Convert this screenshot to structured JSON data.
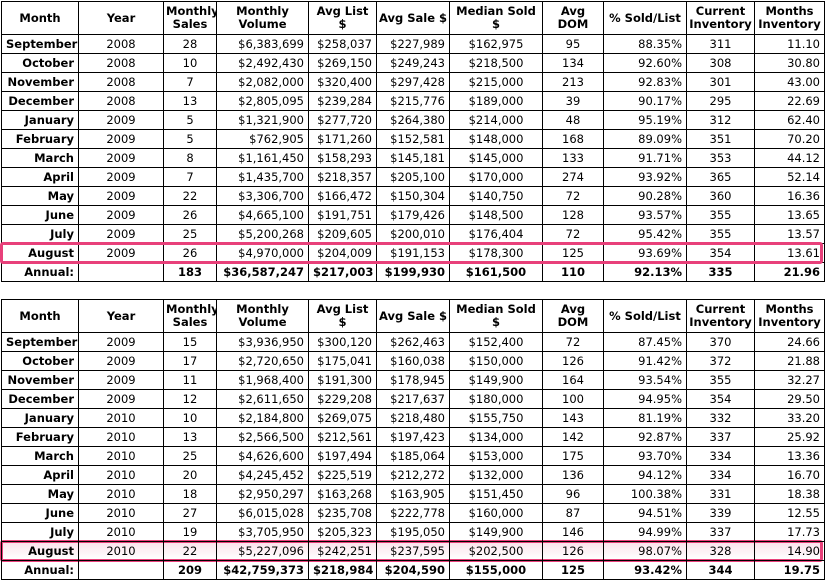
{
  "tables": [
    {
      "header": [
        "Month",
        "Year",
        "Monthly Sales",
        "Monthly Volume",
        "Avg List $",
        "Avg Sale $",
        "Median Sold $",
        "Avg DOM",
        "% Sold/List",
        "Current Inventory",
        "Months Inventory"
      ],
      "rows": [
        [
          "September",
          "2008",
          "28",
          "$6,383,699",
          "$258,037",
          "$227,989",
          "$162,975",
          "95",
          "88.35%",
          "311",
          "11.10"
        ],
        [
          "October",
          "2008",
          "10",
          "$2,492,430",
          "$269,150",
          "$249,243",
          "$218,500",
          "134",
          "92.60%",
          "308",
          "30.80"
        ],
        [
          "November",
          "2008",
          "7",
          "$2,082,000",
          "$320,400",
          "$297,428",
          "$215,000",
          "213",
          "92.83%",
          "301",
          "43.00"
        ],
        [
          "December",
          "2008",
          "13",
          "$2,805,095",
          "$239,284",
          "$215,776",
          "$189,000",
          "39",
          "90.17%",
          "295",
          "22.69"
        ],
        [
          "January",
          "2009",
          "5",
          "$1,321,900",
          "$277,720",
          "$264,380",
          "$214,000",
          "48",
          "95.19%",
          "312",
          "62.40"
        ],
        [
          "February",
          "2009",
          "5",
          "$762,905",
          "$171,260",
          "$152,581",
          "$148,000",
          "168",
          "89.09%",
          "351",
          "70.20"
        ],
        [
          "March",
          "2009",
          "8",
          "$1,161,450",
          "$158,293",
          "$145,181",
          "$145,000",
          "133",
          "91.71%",
          "353",
          "44.12"
        ],
        [
          "April",
          "2009",
          "7",
          "$1,435,700",
          "$218,357",
          "$205,100",
          "$170,000",
          "274",
          "93.92%",
          "365",
          "52.14"
        ],
        [
          "May",
          "2009",
          "22",
          "$3,306,700",
          "$166,472",
          "$150,304",
          "$140,750",
          "72",
          "90.28%",
          "360",
          "16.36"
        ],
        [
          "June",
          "2009",
          "26",
          "$4,665,100",
          "$191,751",
          "$179,426",
          "$148,500",
          "128",
          "93.57%",
          "355",
          "13.65"
        ],
        [
          "July",
          "2009",
          "25",
          "$5,200,268",
          "$209,605",
          "$200,010",
          "$176,404",
          "72",
          "95.42%",
          "355",
          "13.57"
        ],
        [
          "August",
          "2009",
          "26",
          "$4,970,000",
          "$204,009",
          "$191,153",
          "$178,300",
          "125",
          "93.69%",
          "354",
          "13.61"
        ]
      ],
      "annual": {
        "label": "Annual:",
        "values": [
          "183",
          "$36,587,247",
          "$217,003",
          "$199,930",
          "$161,500",
          "110",
          "92.13%",
          "335",
          "21.96"
        ]
      }
    },
    {
      "header": [
        "Month",
        "Year",
        "Monthly Sales",
        "Monthly Volume",
        "Avg List $",
        "Avg Sale $",
        "Median Sold $",
        "Avg DOM",
        "% Sold/List",
        "Current Inventory",
        "Months Inventory"
      ],
      "rows": [
        [
          "September",
          "2009",
          "15",
          "$3,936,950",
          "$300,120",
          "$262,463",
          "$152,400",
          "72",
          "87.45%",
          "370",
          "24.66"
        ],
        [
          "October",
          "2009",
          "17",
          "$2,720,650",
          "$175,041",
          "$160,038",
          "$150,000",
          "126",
          "91.42%",
          "372",
          "21.88"
        ],
        [
          "November",
          "2009",
          "11",
          "$1,968,400",
          "$191,300",
          "$178,945",
          "$149,900",
          "164",
          "93.54%",
          "355",
          "32.27"
        ],
        [
          "December",
          "2009",
          "12",
          "$2,611,650",
          "$229,208",
          "$217,637",
          "$180,000",
          "100",
          "94.95%",
          "354",
          "29.50"
        ],
        [
          "January",
          "2010",
          "10",
          "$2,184,800",
          "$269,075",
          "$218,480",
          "$155,750",
          "143",
          "81.19%",
          "332",
          "33.20"
        ],
        [
          "February",
          "2010",
          "13",
          "$2,566,500",
          "$212,561",
          "$197,423",
          "$134,000",
          "142",
          "92.87%",
          "337",
          "25.92"
        ],
        [
          "March",
          "2010",
          "25",
          "$4,626,600",
          "$197,494",
          "$185,064",
          "$153,000",
          "175",
          "93.70%",
          "334",
          "13.36"
        ],
        [
          "April",
          "2010",
          "20",
          "$4,245,452",
          "$225,519",
          "$212,272",
          "$132,000",
          "136",
          "94.12%",
          "334",
          "16.70"
        ],
        [
          "May",
          "2010",
          "18",
          "$2,950,297",
          "$163,268",
          "$163,905",
          "$151,450",
          "96",
          "100.38%",
          "331",
          "18.38"
        ],
        [
          "June",
          "2010",
          "27",
          "$6,015,028",
          "$235,708",
          "$222,778",
          "$160,000",
          "87",
          "94.51%",
          "339",
          "12.55"
        ],
        [
          "July",
          "2010",
          "19",
          "$3,705,950",
          "$205,323",
          "$195,050",
          "$149,900",
          "146",
          "94.99%",
          "337",
          "17.73"
        ],
        [
          "August",
          "2010",
          "22",
          "$5,227,096",
          "$242,251",
          "$237,595",
          "$202,500",
          "126",
          "98.07%",
          "328",
          "14.90"
        ]
      ],
      "annual": {
        "label": "Annual:",
        "values": [
          "209",
          "$42,759,373",
          "$218,984",
          "$204,590",
          "$155,000",
          "125",
          "93.42%",
          "344",
          "19.75"
        ]
      }
    }
  ]
}
